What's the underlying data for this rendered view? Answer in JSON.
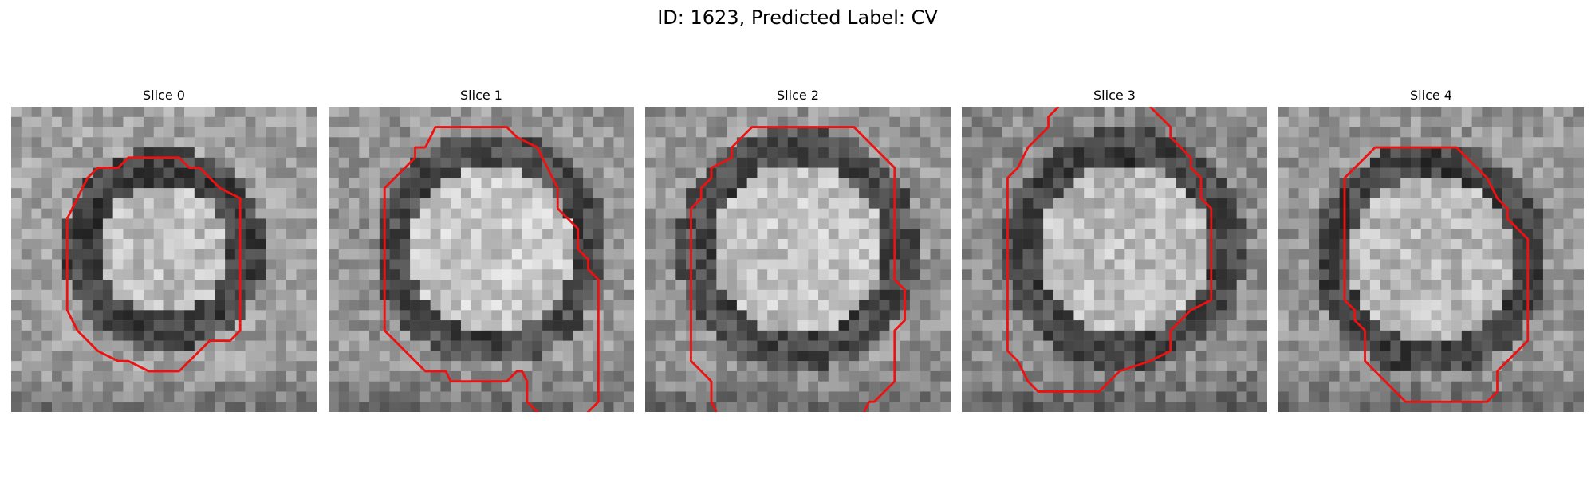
{
  "figure": {
    "title": "ID: 1623, Predicted Label: CV",
    "contour_color": "#ee1111",
    "slices": [
      {
        "title": "Slice 0",
        "blob": {
          "cx": 15,
          "cy": 14,
          "r": 7.5,
          "inner": 190,
          "ring": 60,
          "bg": 160
        },
        "contour": [
          [
            5.5,
            11
          ],
          [
            6.5,
            9
          ],
          [
            7.5,
            7
          ],
          [
            8.5,
            6
          ],
          [
            10.5,
            6
          ],
          [
            11.5,
            5
          ],
          [
            16.5,
            5
          ],
          [
            17.5,
            6
          ],
          [
            18.5,
            6
          ],
          [
            20.5,
            8
          ],
          [
            22.5,
            9
          ],
          [
            22.5,
            22
          ],
          [
            21.5,
            23
          ],
          [
            19.5,
            23
          ],
          [
            18.5,
            24
          ],
          [
            16.5,
            26
          ],
          [
            13.5,
            26
          ],
          [
            11.5,
            25
          ],
          [
            10.5,
            25
          ],
          [
            8.5,
            24
          ],
          [
            6.5,
            22
          ],
          [
            5.5,
            20
          ]
        ]
      },
      {
        "title": "Slice 1",
        "blob": {
          "cx": 16,
          "cy": 14,
          "r": 9,
          "inner": 200,
          "ring": 70,
          "bg": 150
        },
        "contour": [
          [
            9.5,
            4
          ],
          [
            10.5,
            2
          ],
          [
            17.5,
            2
          ],
          [
            18.5,
            3
          ],
          [
            20.5,
            4
          ],
          [
            21.5,
            6
          ],
          [
            22.5,
            8
          ],
          [
            22.5,
            10
          ],
          [
            23.5,
            11
          ],
          [
            24.5,
            12
          ],
          [
            24.5,
            14
          ],
          [
            25.5,
            15
          ],
          [
            25.5,
            16
          ],
          [
            26.5,
            17
          ],
          [
            26.5,
            29
          ],
          [
            25.5,
            30
          ],
          [
            24.5,
            31
          ],
          [
            21.5,
            31
          ],
          [
            19.5,
            29
          ],
          [
            19.5,
            27
          ],
          [
            19.0,
            26
          ],
          [
            18.5,
            26
          ],
          [
            17.5,
            27
          ],
          [
            12.0,
            27
          ],
          [
            11.5,
            26
          ],
          [
            9.5,
            26
          ],
          [
            8.5,
            25
          ],
          [
            6.5,
            23
          ],
          [
            5.5,
            22
          ],
          [
            5.5,
            8
          ],
          [
            7.5,
            6
          ],
          [
            8.5,
            5
          ],
          [
            8.5,
            4
          ]
        ]
      },
      {
        "title": "Slice 2",
        "blob": {
          "cx": 15,
          "cy": 14,
          "r": 9.5,
          "inner": 195,
          "ring": 70,
          "bg": 150
        },
        "contour": [
          [
            7,
            30
          ],
          [
            6.5,
            29
          ],
          [
            6.5,
            27
          ],
          [
            5.5,
            26
          ],
          [
            4.5,
            25
          ],
          [
            4.5,
            20
          ],
          [
            4.5,
            10
          ],
          [
            5.5,
            9
          ],
          [
            5.5,
            8
          ],
          [
            6.5,
            7
          ],
          [
            6.5,
            6
          ],
          [
            8.5,
            5
          ],
          [
            8.5,
            4
          ],
          [
            10.5,
            2
          ],
          [
            20.5,
            2
          ],
          [
            23.5,
            5
          ],
          [
            24.5,
            6
          ],
          [
            24.5,
            17
          ],
          [
            25.5,
            18
          ],
          [
            25.5,
            21
          ],
          [
            24.5,
            22
          ],
          [
            24.5,
            27
          ],
          [
            23.5,
            28
          ],
          [
            22.5,
            29
          ],
          [
            22.0,
            29
          ],
          [
            21.5,
            30
          ]
        ]
      },
      {
        "title": "Slice 3",
        "blob": {
          "cx": 16,
          "cy": 14,
          "r": 9.5,
          "inner": 190,
          "ring": 65,
          "bg": 140
        },
        "contour": [
          [
            9.5,
            0
          ],
          [
            8.5,
            1
          ],
          [
            8.5,
            2
          ],
          [
            7.5,
            3
          ],
          [
            6.5,
            4
          ],
          [
            5.5,
            6
          ],
          [
            4.5,
            7
          ],
          [
            4.5,
            8
          ],
          [
            4.5,
            24
          ],
          [
            5.5,
            25
          ],
          [
            6.5,
            27
          ],
          [
            7.5,
            28
          ],
          [
            13.5,
            28
          ],
          [
            15.5,
            26
          ],
          [
            18.5,
            25
          ],
          [
            20.5,
            24
          ],
          [
            20.5,
            22
          ],
          [
            22.5,
            20
          ],
          [
            24.5,
            19
          ],
          [
            24.5,
            10
          ],
          [
            23.5,
            9
          ],
          [
            23.5,
            7
          ],
          [
            22.5,
            6
          ],
          [
            22.5,
            5
          ],
          [
            20.5,
            3
          ],
          [
            20.5,
            2
          ],
          [
            18.5,
            0
          ]
        ]
      },
      {
        "title": "Slice 4",
        "blob": {
          "cx": 15,
          "cy": 15,
          "r": 9,
          "inner": 185,
          "ring": 60,
          "bg": 150
        },
        "contour": [
          [
            6.5,
            7
          ],
          [
            8.5,
            5
          ],
          [
            9.5,
            4
          ],
          [
            17.5,
            4
          ],
          [
            19.5,
            6
          ],
          [
            20.5,
            7
          ],
          [
            21.5,
            9
          ],
          [
            22.5,
            10
          ],
          [
            22.5,
            11
          ],
          [
            23.5,
            12
          ],
          [
            24.5,
            13
          ],
          [
            24.5,
            23
          ],
          [
            23.5,
            24
          ],
          [
            22.5,
            25
          ],
          [
            21.5,
            26
          ],
          [
            21.5,
            28
          ],
          [
            20.5,
            29
          ],
          [
            12.5,
            29
          ],
          [
            10.5,
            27
          ],
          [
            9.5,
            26
          ],
          [
            8.5,
            25
          ],
          [
            8.5,
            22
          ],
          [
            7.5,
            21
          ],
          [
            7.5,
            20
          ],
          [
            6.5,
            19
          ],
          [
            6.5,
            17
          ]
        ]
      }
    ]
  }
}
